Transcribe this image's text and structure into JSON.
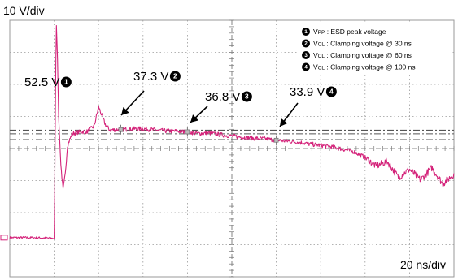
{
  "chart_data": {
    "type": "line",
    "title": "",
    "vertical_scale": "10 V/div",
    "horizontal_scale": "20 ns/div",
    "grid": true,
    "divisions": {
      "horizontal": 10,
      "vertical": 8
    },
    "xlim": [
      -20,
      180
    ],
    "ylim": [
      -50,
      30
    ],
    "x_unit": "ns",
    "y_unit": "V",
    "colors": {
      "trace": "#d4237a",
      "grid": "#9a9a9a",
      "reference": "#555555"
    },
    "series": [
      {
        "name": "",
        "x": [
          -20,
          -10,
          0,
          0.3,
          0.6,
          1,
          1.5,
          2,
          3,
          4,
          5,
          6,
          8,
          10,
          12,
          15,
          18,
          20,
          23,
          25,
          30,
          35,
          40,
          45,
          50,
          55,
          60,
          65,
          70,
          75,
          80,
          85,
          90,
          95,
          100,
          105,
          110,
          115,
          120,
          125,
          130,
          135,
          140,
          145,
          150,
          155,
          160,
          165,
          170,
          175,
          180
        ],
        "y": [
          -37.8,
          -37.8,
          -38,
          -20,
          10,
          28.5,
          18,
          0,
          -15,
          -23,
          -18,
          -9,
          -5.5,
          -5,
          -4.8,
          -4.7,
          -3,
          3,
          -2.5,
          -4.2,
          -4.1,
          -3.9,
          -3.8,
          -4.2,
          -4.5,
          -4.6,
          -4.8,
          -5.3,
          -5.2,
          -5.7,
          -6.1,
          -6.5,
          -6.8,
          -7,
          -7.4,
          -7.7,
          -8,
          -8.6,
          -9,
          -9.5,
          -10.2,
          -11,
          -12.8,
          -15.5,
          -14,
          -19,
          -16.5,
          -19.8,
          -16,
          -21,
          -18
        ]
      }
    ],
    "reference_lines": [
      -4.3,
      -5.4,
      -7.2
    ],
    "annotations": [
      {
        "label": "52.5 V",
        "marker": "1",
        "x": 1,
        "y": 28.5
      },
      {
        "label": "37.3 V",
        "marker": "2",
        "x": 30,
        "y": -4.1
      },
      {
        "label": "36.8 V",
        "marker": "3",
        "x": 60,
        "y": -4.8
      },
      {
        "label": "33.9 V",
        "marker": "4",
        "x": 100,
        "y": -7.4
      }
    ],
    "legend": {
      "position": "top-right",
      "entries": [
        {
          "marker": "1",
          "symbol": "V",
          "subscript": "PP",
          "text": ": ESD peak voltage"
        },
        {
          "marker": "2",
          "symbol": "V",
          "subscript": "CL",
          "text": ": Clamping voltage @ 30 ns"
        },
        {
          "marker": "3",
          "symbol": "V",
          "subscript": "CL",
          "text": ": Clamping voltage @ 60 ns"
        },
        {
          "marker": "4",
          "symbol": "V",
          "subscript": "CL",
          "text": ": Clamping voltage @ 100 ns"
        }
      ]
    }
  }
}
